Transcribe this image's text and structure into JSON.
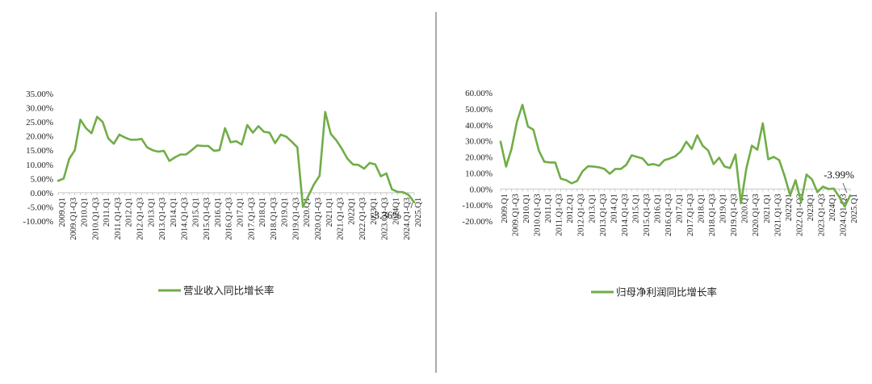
{
  "chart_data": [
    {
      "type": "line",
      "ylim": [
        -10,
        35
      ],
      "yticks": [
        "35.00%",
        "30.00%",
        "25.00%",
        "20.00%",
        "15.00%",
        "10.00%",
        "5.00%",
        "0.00%",
        "-5.00%",
        "-10.00%"
      ],
      "ytick_values": [
        35,
        30,
        25,
        20,
        15,
        10,
        5,
        0,
        -5,
        -10
      ],
      "xtick_labels": [
        "2009.Q1",
        "2009.Q1-Q3",
        "2010.Q1",
        "2010.Q1-Q3",
        "2011.Q1",
        "2011.Q1-Q3",
        "2012.Q1",
        "2012.Q1-Q3",
        "2013.Q1",
        "2013.Q1-Q3",
        "2014.Q1",
        "2014.Q1-Q3",
        "2015.Q1",
        "2015.Q1-Q3",
        "2016.Q1",
        "2016.Q1-Q3",
        "2017.Q1",
        "2017.Q1-Q3",
        "2018.Q1",
        "2018.Q1-Q3",
        "2019.Q1",
        "2019.Q1-Q3",
        "2020.Q1",
        "2020.Q1-Q3",
        "2021.Q1",
        "2021.Q1-Q3",
        "2022Q1",
        "2022.Q1-Q3",
        "2023Q1",
        "2023.Q1-Q3",
        "2024Q1",
        "2024.Q1-Q3",
        "2025.Q1"
      ],
      "series": [
        {
          "name": "营业收入同比增长率",
          "color": "#70AD47",
          "values": [
            4.2,
            5.0,
            12.0,
            15.0,
            25.8,
            22.8,
            21.0,
            26.8,
            25.0,
            19.2,
            17.3,
            20.5,
            19.5,
            18.7,
            18.7,
            19.0,
            16.0,
            15.0,
            14.5,
            14.8,
            11.2,
            12.5,
            13.5,
            13.5,
            15.0,
            16.7,
            16.5,
            16.5,
            14.8,
            15.0,
            22.8,
            17.8,
            18.2,
            17.0,
            23.9,
            21.2,
            23.5,
            21.5,
            21.2,
            17.5,
            20.5,
            19.8,
            18.0,
            16.0,
            -5.0,
            -1.0,
            3.0,
            6.0,
            28.5,
            20.8,
            18.5,
            15.5,
            12.0,
            10.0,
            9.8,
            8.5,
            10.5,
            10.0,
            5.8,
            6.8,
            1.2,
            0.3,
            0.2,
            -0.8,
            -3.36
          ]
        }
      ],
      "annotation": "-3.36%"
    },
    {
      "type": "line",
      "ylim": [
        -20,
        60
      ],
      "yticks": [
        "60.00%",
        "50.00%",
        "40.00%",
        "30.00%",
        "20.00%",
        "10.00%",
        "0.00%",
        "-10.00%",
        "-20.00%"
      ],
      "ytick_values": [
        60,
        50,
        40,
        30,
        20,
        10,
        0,
        -10,
        -20
      ],
      "xtick_labels": [
        "2009.Q1",
        "2009.Q1-Q3",
        "2010.Q1",
        "2010.Q1-Q3",
        "2011.Q1",
        "2011.Q1-Q3",
        "2012.Q1",
        "2012.Q1-Q3",
        "2013.Q1",
        "2013.Q1-Q3",
        "2014.Q1",
        "2014.Q1-Q3",
        "2015.Q1",
        "2015.Q1-Q3",
        "2016.Q1",
        "2016.Q1-Q3",
        "2017.Q1",
        "2017.Q1-Q3",
        "2018.Q1",
        "2018.Q1-Q3",
        "2019.Q1",
        "2019.Q1-Q3",
        "2020.Q1",
        "2020.Q1-Q3",
        "2021.Q1",
        "2021.Q1-Q3",
        "2022Q1",
        "2022.Q1-Q3",
        "2023Q1",
        "2023.Q1-Q3",
        "2024Q1",
        "2024.Q1-Q3",
        "2025.Q1"
      ],
      "series": [
        {
          "name": "归母净利润同比增长率",
          "color": "#70AD47",
          "values": [
            29.5,
            14.0,
            25.0,
            42.0,
            52.5,
            39.0,
            37.0,
            24.0,
            17.0,
            16.5,
            16.5,
            6.5,
            5.5,
            3.5,
            5.0,
            11.0,
            14.2,
            14.0,
            13.5,
            12.5,
            9.5,
            12.5,
            12.5,
            15.0,
            21.0,
            20.0,
            19.0,
            15.0,
            15.5,
            14.5,
            18.0,
            19.0,
            20.5,
            23.5,
            29.5,
            25.0,
            33.5,
            27.0,
            24.0,
            15.5,
            19.5,
            14.0,
            13.0,
            21.5,
            -9.0,
            13.0,
            27.0,
            24.5,
            41.0,
            18.5,
            20.0,
            18.0,
            8.0,
            -4.0,
            5.5,
            -8.0,
            9.0,
            6.0,
            -2.0,
            1.5,
            0.0,
            0.2,
            -5.0,
            -11.0,
            -3.99
          ]
        }
      ],
      "annotation": "-3.99%"
    }
  ]
}
